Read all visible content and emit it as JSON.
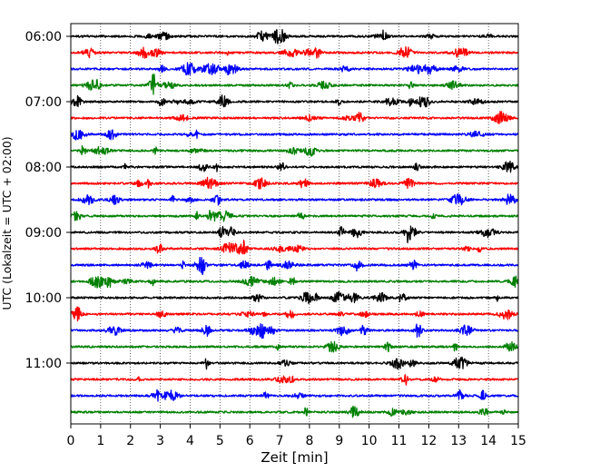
{
  "chart_data": {
    "type": "line",
    "title": "",
    "xlabel": "Zeit  [min]",
    "ylabel": "UTC (Lokalzeit = UTC + 02:00)",
    "xlim": [
      0,
      15
    ],
    "x_ticks": [
      "0",
      "1",
      "2",
      "3",
      "4",
      "5",
      "6",
      "7",
      "8",
      "9",
      "10",
      "11",
      "12",
      "13",
      "14",
      "15"
    ],
    "y_ticks": [
      "06:00",
      "07:00",
      "08:00",
      "09:00",
      "10:00",
      "11:00"
    ],
    "grid": "vertical dotted",
    "legend": "none",
    "trace_colors": [
      "#000000",
      "#ff0000",
      "#0000ff",
      "#008000"
    ],
    "trace_start_times": [
      "06:00",
      "06:15",
      "06:30",
      "06:45",
      "07:00",
      "07:15",
      "07:30",
      "07:45",
      "08:00",
      "08:15",
      "08:30",
      "08:45",
      "09:00",
      "09:15",
      "09:30",
      "09:45",
      "10:00",
      "10:15",
      "10:30",
      "10:45",
      "11:00",
      "11:15",
      "11:30",
      "11:45"
    ],
    "trace_duration_min": 15
  }
}
